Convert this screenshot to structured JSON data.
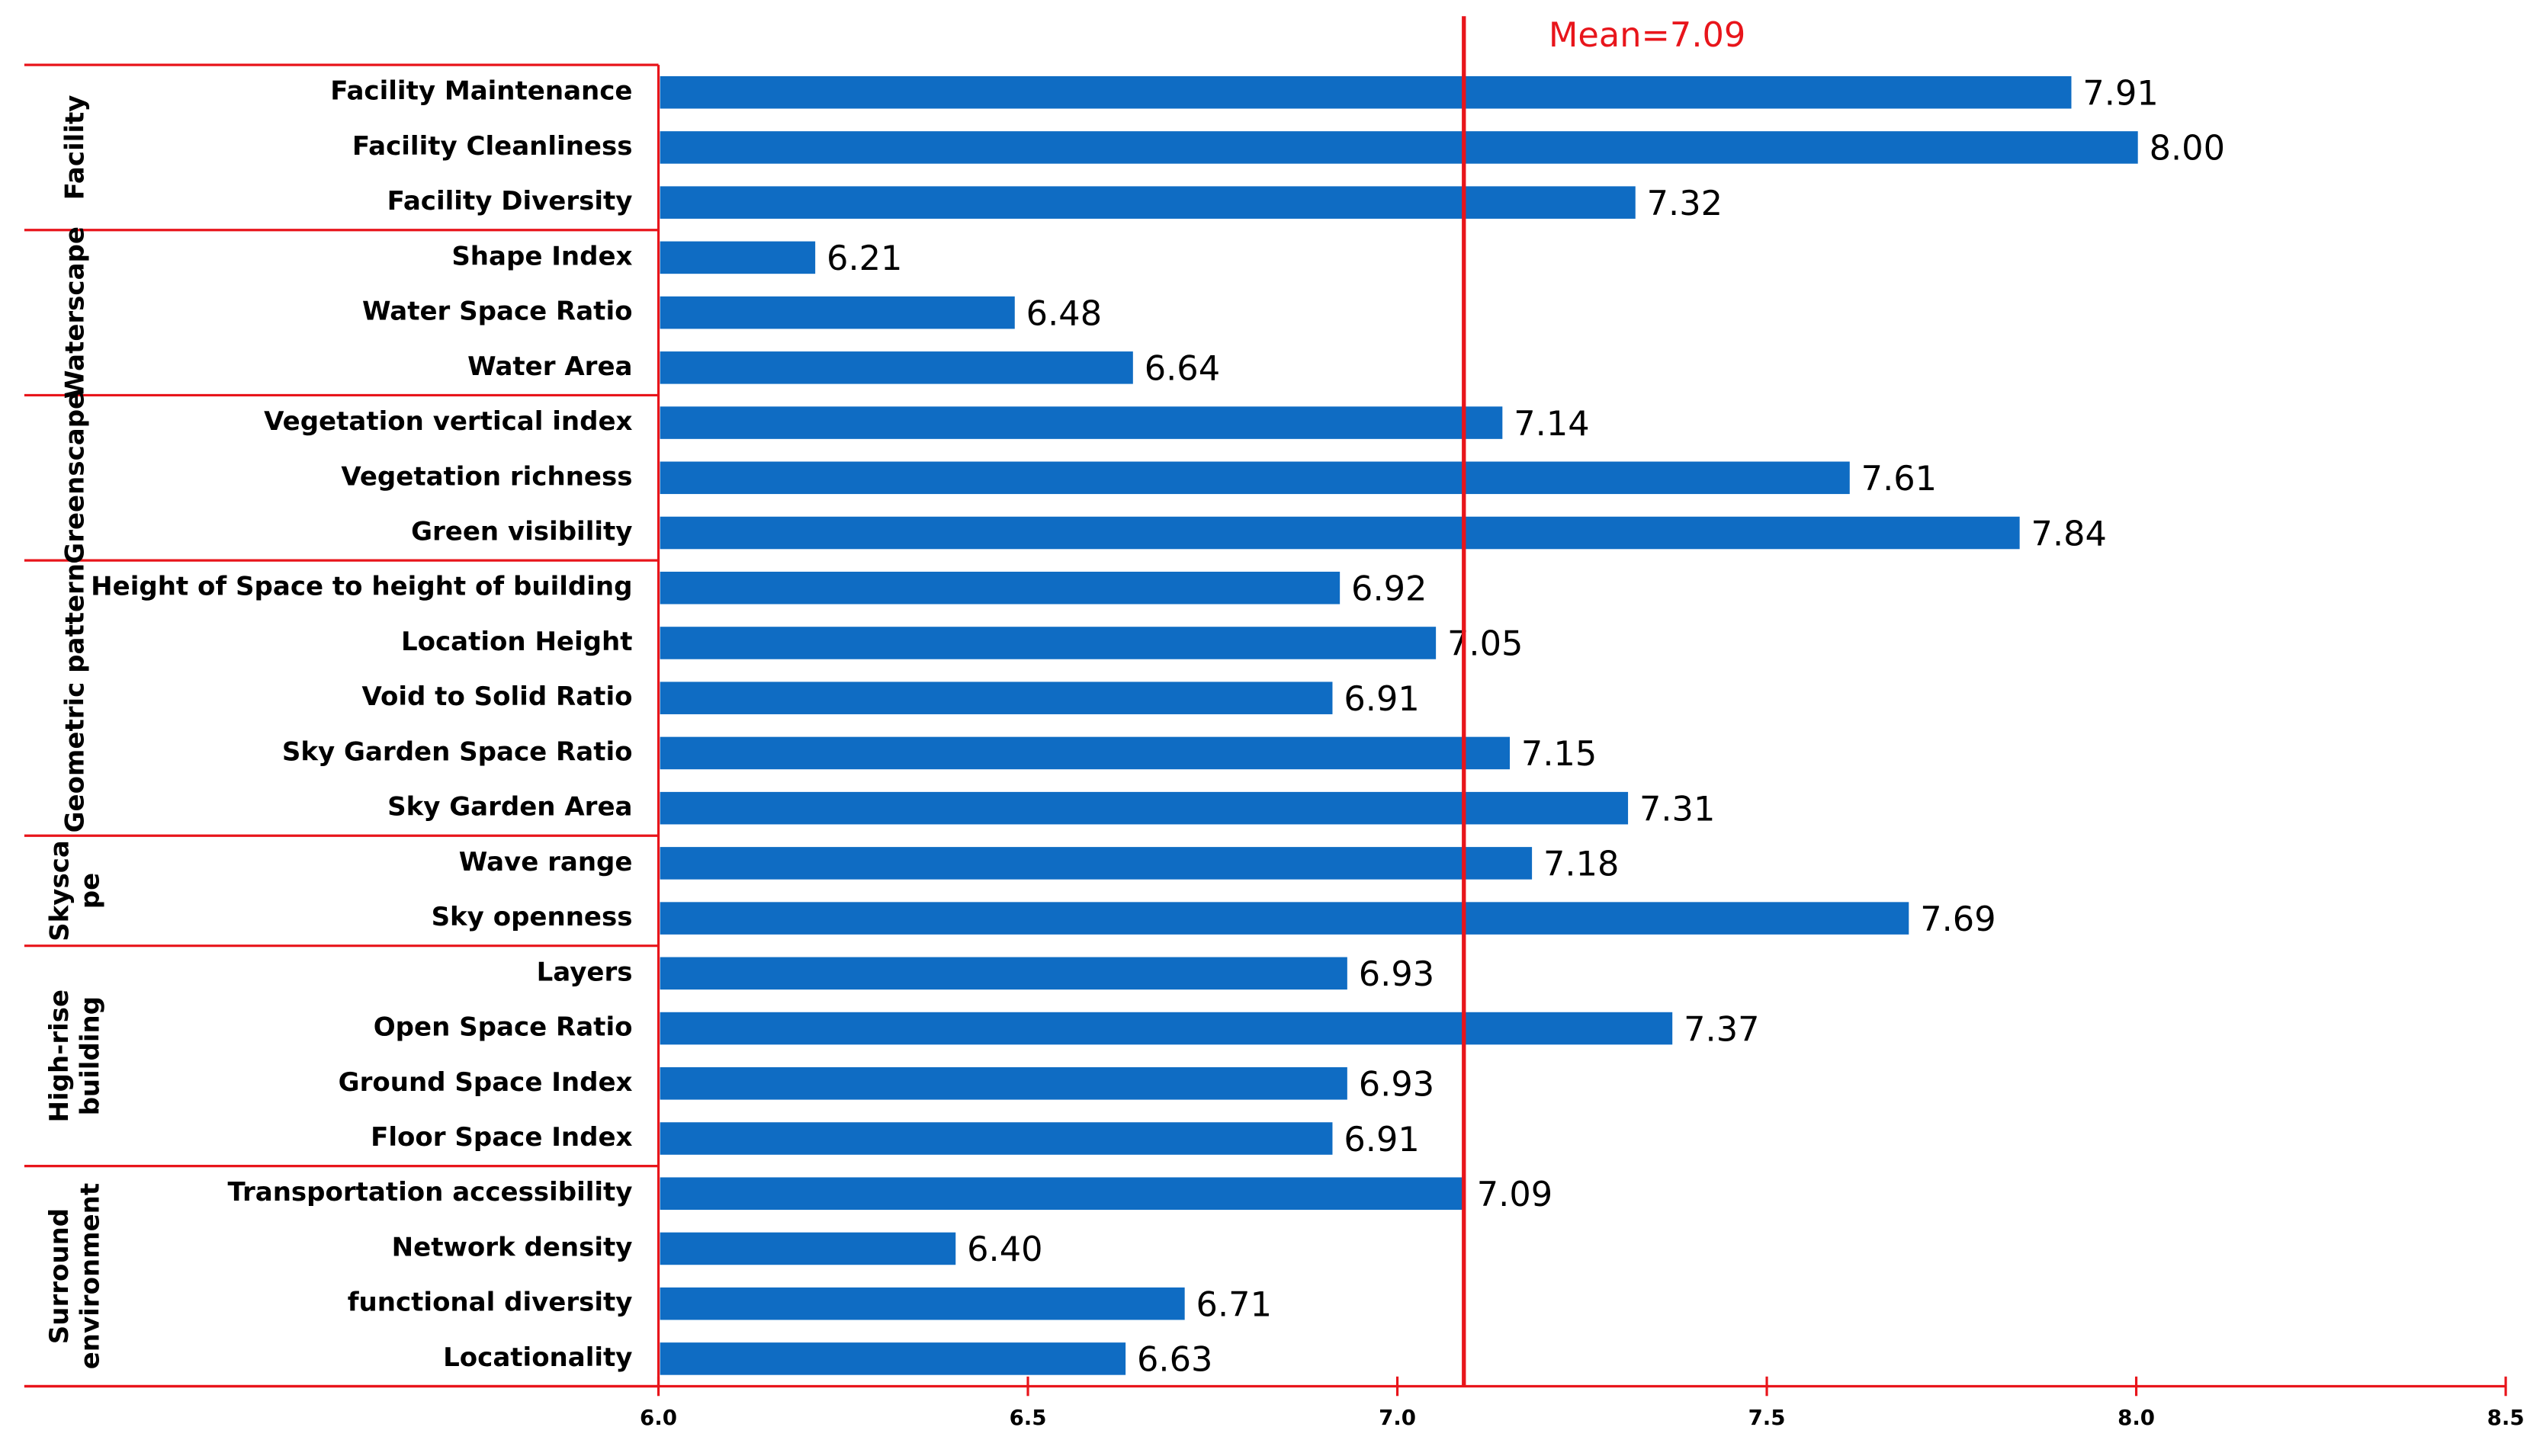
{
  "chart_data": {
    "type": "bar",
    "orientation": "horizontal",
    "color": "#0f6cc3",
    "line_color": "#e8151b",
    "xlim": [
      6,
      8.5
    ],
    "xticks": [
      {
        "value": 6,
        "label": "6.0"
      },
      {
        "value": 6.5,
        "label": "6.5"
      },
      {
        "value": 7,
        "label": "7.0"
      },
      {
        "value": 7.5,
        "label": "7.5"
      },
      {
        "value": 8,
        "label": "8.0"
      },
      {
        "value": 8.5,
        "label": "8.5"
      }
    ],
    "mean_line": {
      "value": 7.09,
      "label": "Mean=7.09"
    },
    "groups": [
      {
        "label": [
          "Facility"
        ],
        "categories": [
          "Facility Maintenance",
          "Facility Cleanliness",
          "Facility Diversity"
        ],
        "values": [
          7.91,
          8,
          7.32
        ],
        "value_labels": [
          "7.91",
          "8.00",
          "7.32"
        ]
      },
      {
        "label": [
          "Waterscape"
        ],
        "categories": [
          "Shape Index",
          "Water Space Ratio",
          "Water Area"
        ],
        "values": [
          6.21,
          6.48,
          6.64
        ],
        "value_labels": [
          "6.21",
          "6.48",
          "6.64"
        ]
      },
      {
        "label": [
          "Greenscape"
        ],
        "categories": [
          "Vegetation vertical index",
          "Vegetation richness",
          "Green visibility"
        ],
        "values": [
          7.14,
          7.61,
          7.84
        ],
        "value_labels": [
          "7.14",
          "7.61",
          "7.84"
        ]
      },
      {
        "label": [
          "Geometric pattern"
        ],
        "categories": [
          "Height of Space to height of building",
          "Location Height",
          "Void to Solid Ratio",
          "Sky Garden Space Ratio",
          "Sky Garden Area"
        ],
        "values": [
          6.92,
          7.05,
          6.91,
          7.15,
          7.31
        ],
        "value_labels": [
          "6.92",
          "7.05",
          "6.91",
          "7.15",
          "7.31"
        ]
      },
      {
        "label": [
          "Skysca",
          "pe"
        ],
        "categories": [
          "Wave range",
          "Sky openness"
        ],
        "values": [
          7.18,
          7.69
        ],
        "value_labels": [
          "7.18",
          "7.69"
        ]
      },
      {
        "label": [
          "High-rise",
          "building"
        ],
        "categories": [
          "Layers",
          "Open Space Ratio",
          "Ground Space Index",
          "Floor Space Index"
        ],
        "values": [
          6.93,
          7.37,
          6.93,
          6.91
        ],
        "value_labels": [
          "6.93",
          "7.37",
          "6.93",
          "6.91"
        ]
      },
      {
        "label": [
          "Surround",
          "environment"
        ],
        "categories": [
          "Transportation accessibility",
          "Network density",
          "functional diversity",
          "Locationality"
        ],
        "values": [
          7.09,
          6.4,
          6.71,
          6.63
        ],
        "value_labels": [
          "7.09",
          "6.40",
          "6.71",
          "6.63"
        ]
      }
    ]
  }
}
